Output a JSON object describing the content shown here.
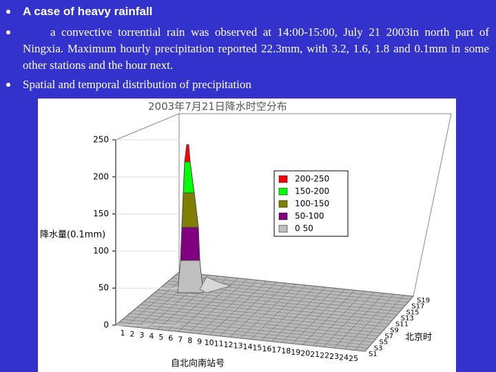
{
  "bullets": [
    {
      "text": "A case of heavy rainfall"
    },
    {
      "text": "a convective torrential rain was observed at 14:00-15:00, July 21 2003in north part of Ningxia. Maximum hourly precipitation reported 22.3mm, with 3.2, 1.6, 1.8 and 0.1mm in some other stations and the hour next."
    },
    {
      "text": "Spatial and temporal distribution of precipitation"
    }
  ],
  "figure": {
    "title": "2003年7月21日降水时空分布",
    "y_axis_label": "降水量(0.1mm)",
    "yticks": [
      0,
      50,
      100,
      150,
      200,
      250
    ],
    "legend": [
      {
        "label": "200-250",
        "color": "#ff0000"
      },
      {
        "label": "150-200",
        "color": "#00ff00"
      },
      {
        "label": "100-150",
        "color": "#808000"
      },
      {
        "label": "50-100",
        "color": "#800080"
      },
      {
        "label": "0 50",
        "color": "#c0c0c0"
      }
    ],
    "front_axis_labels": [
      "1",
      "2",
      "3",
      "4",
      "5",
      "6",
      "7",
      "8",
      "9",
      "10",
      "11",
      "12",
      "13",
      "14",
      "15",
      "16",
      "17",
      "18",
      "19",
      "20",
      "21",
      "22",
      "23",
      "24",
      "25"
    ],
    "front_axis_title": "自北向南站号",
    "side_axis_labels": [
      "S1",
      "S3",
      "S5",
      "S7",
      "S9",
      "S11",
      "S13",
      "S15",
      "S17",
      "S19"
    ],
    "side_axis_title": "北京时"
  }
}
